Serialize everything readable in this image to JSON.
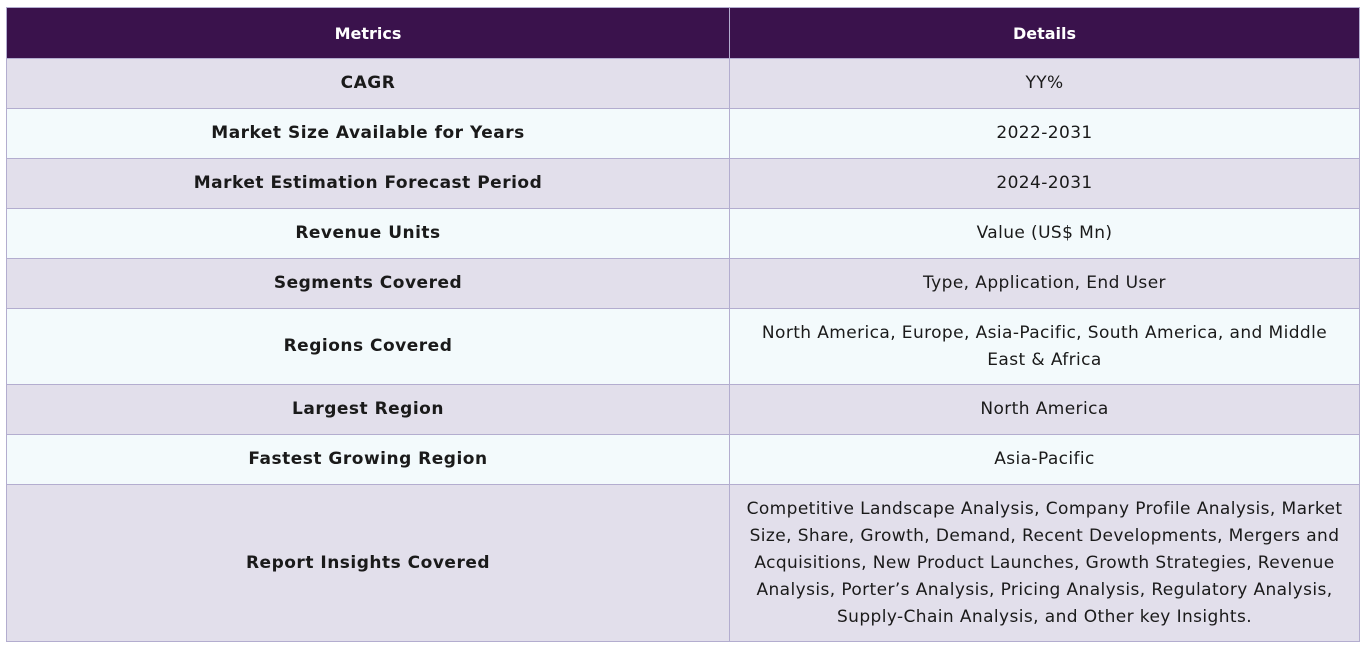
{
  "table": {
    "headers": [
      "Metrics",
      "Details"
    ],
    "rows": [
      {
        "metric": "CAGR",
        "detail": "YY%"
      },
      {
        "metric": "Market Size Available for Years",
        "detail": "2022-2031"
      },
      {
        "metric": "Market Estimation Forecast Period",
        "detail": "2024-2031"
      },
      {
        "metric": "Revenue Units",
        "detail": "Value (US$ Mn)"
      },
      {
        "metric": "Segments Covered",
        "detail": "Type, Application, End User"
      },
      {
        "metric": "Regions Covered",
        "detail": "North America, Europe, Asia-Pacific, South America, and Middle East & Africa"
      },
      {
        "metric": "Largest Region",
        "detail": "North America"
      },
      {
        "metric": "Fastest Growing Region",
        "detail": "Asia-Pacific"
      },
      {
        "metric": "Report Insights Covered",
        "detail": "Competitive Landscape Analysis, Company Profile Analysis, Market Size, Share, Growth, Demand, Recent Developments, Mergers and Acquisitions, New Product Launches, Growth Strategies, Revenue Analysis, Porter’s Analysis, Pricing Analysis, Regulatory Analysis, Supply-Chain Analysis, and Other key Insights."
      }
    ]
  },
  "colors": {
    "header_bg": "#3a124c",
    "row_odd_bg": "#e2dfeb",
    "row_even_bg": "#f3fafc",
    "border": "#b3adcf"
  }
}
